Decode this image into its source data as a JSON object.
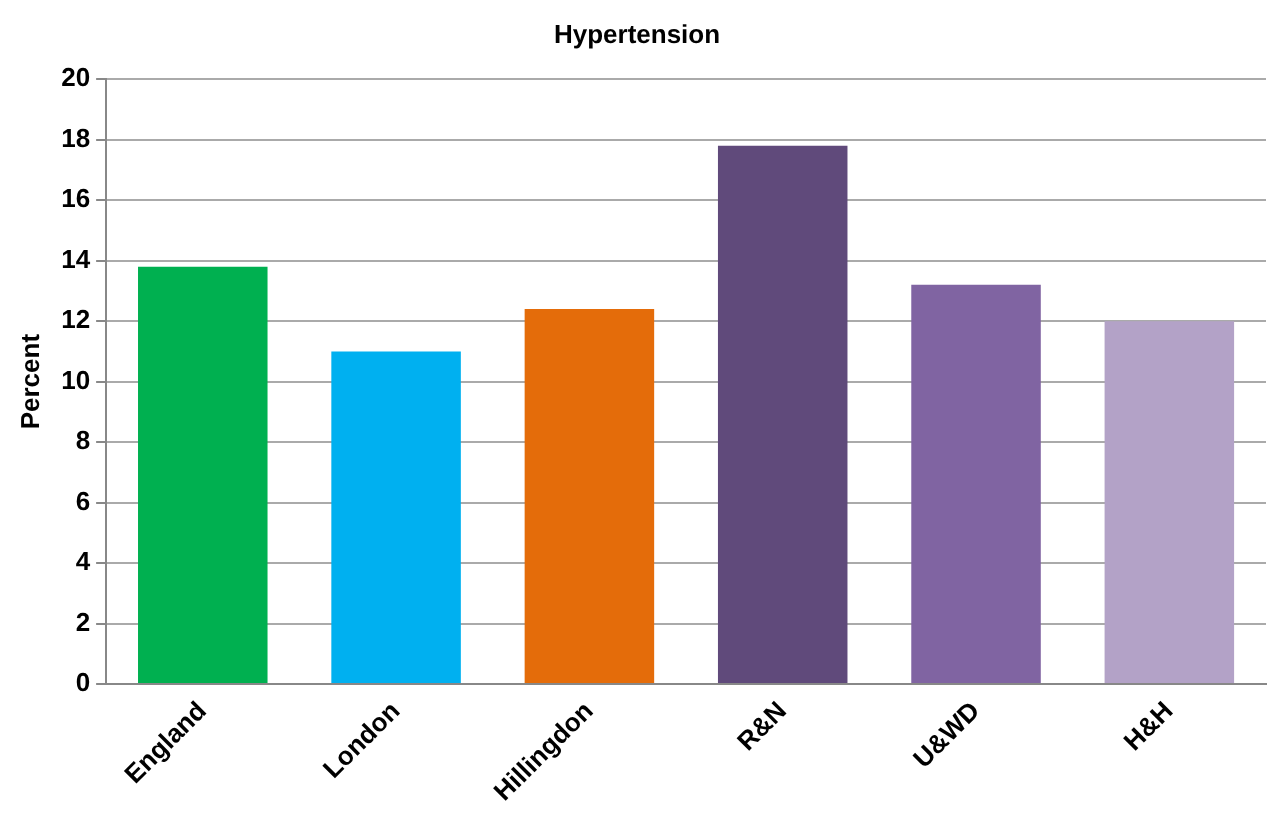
{
  "chart_data": {
    "type": "bar",
    "title": "Hypertension",
    "ylabel": "Percent",
    "categories": [
      "England",
      "London",
      "Hillingdon",
      "R&N",
      "U&WD",
      "H&H"
    ],
    "values": [
      13.8,
      11.0,
      12.4,
      17.8,
      13.2,
      12.0
    ],
    "colors": [
      "#00b050",
      "#00b0f0",
      "#e46c0a",
      "#604a7b",
      "#8064a2",
      "#b3a2c7"
    ],
    "ylim": [
      0,
      20
    ],
    "yticks": [
      0,
      2,
      4,
      6,
      8,
      10,
      12,
      14,
      16,
      18,
      20
    ],
    "grid": "y",
    "legend": false
  }
}
